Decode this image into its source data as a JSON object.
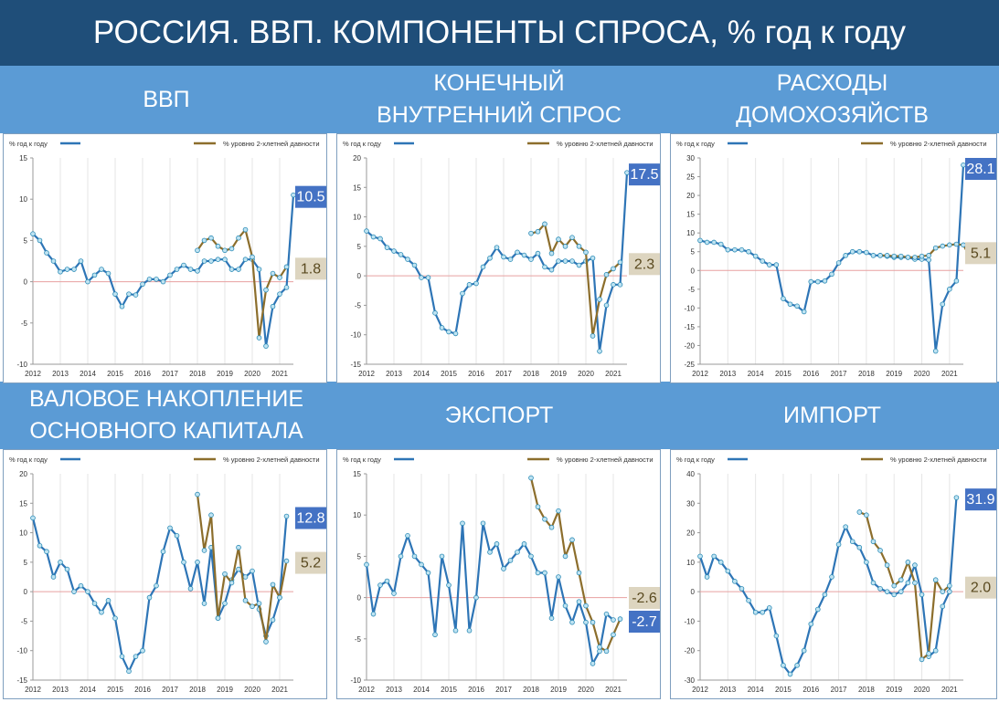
{
  "header": {
    "title": "РОССИЯ. ВВП. КОМПОНЕНТЫ СПРОСА, % год к году"
  },
  "colors": {
    "header_bg": "#1f4e79",
    "band_bg": "#5b9bd5",
    "series_yoy": "#2e75b6",
    "series_2y": "#8c6e2c",
    "label_yoy_bg": "#4472c4",
    "label_2y_bg": "#ddd5c0",
    "zero_line": "#e8a0a0"
  },
  "legend": {
    "yoy": "% год к году",
    "two_year": "% уровню 2-хлетней давности"
  },
  "panels": [
    {
      "title": "ВВП"
    },
    {
      "title": "КОНЕЧНЫЙ\nВНУТРЕННИЙ СПРОС"
    },
    {
      "title": "РАСХОДЫ\nДОМОХОЗЯЙСТВ"
    },
    {
      "title": "ВАЛОВОЕ НАКОПЛЕНИЕ\nОСНОВНОГО КАПИТАЛА"
    },
    {
      "title": "ЭКСПОРТ"
    },
    {
      "title": "ИМПОРТ"
    }
  ],
  "chart_data": [
    {
      "type": "line",
      "title": "ВВП",
      "ylim": [
        -10,
        15
      ],
      "yticks": [
        -10,
        -5,
        0,
        5,
        10,
        15
      ],
      "x_start": 2012.0,
      "x_step": 0.25,
      "x_tick_labels": [
        "2012",
        "2013",
        "2014",
        "2015",
        "2016",
        "2017",
        "2018",
        "2019",
        "2020",
        "2021"
      ],
      "series": [
        {
          "name": "% год к году",
          "start_index": 0,
          "values": [
            5.8,
            5.0,
            3.5,
            2.5,
            1.2,
            1.5,
            1.5,
            2.5,
            0.0,
            0.8,
            1.5,
            1.0,
            -1.5,
            -3.0,
            -1.5,
            -1.6,
            -0.3,
            0.3,
            0.3,
            0.0,
            0.8,
            1.5,
            2.0,
            1.5,
            1.3,
            2.5,
            2.5,
            2.7,
            2.7,
            1.5,
            1.5,
            2.7,
            2.7,
            1.5,
            -7.8,
            -3.0,
            -1.5,
            -0.7,
            10.5
          ]
        },
        {
          "name": "% уровню 2-хлетней давности",
          "start_index": 24,
          "values": [
            3.8,
            5.0,
            5.3,
            4.3,
            3.8,
            4.0,
            5.3,
            6.3,
            3.0,
            -6.8,
            -1.0,
            1.0,
            0.5,
            1.8
          ]
        }
      ],
      "end_labels": {
        "yoy": "10.5",
        "two_year": "1.8"
      }
    },
    {
      "type": "line",
      "title": "КОНЕЧНЫЙ ВНУТРЕННИЙ СПРОС",
      "ylim": [
        -15,
        20
      ],
      "yticks": [
        -15,
        -10,
        -5,
        0,
        5,
        10,
        15,
        20
      ],
      "x_start": 2012.0,
      "x_step": 0.25,
      "x_tick_labels": [
        "2012",
        "2013",
        "2014",
        "2015",
        "2016",
        "2017",
        "2018",
        "2019",
        "2020",
        "2021"
      ],
      "series": [
        {
          "name": "% год к году",
          "start_index": 0,
          "values": [
            7.6,
            6.6,
            6.3,
            4.8,
            4.2,
            3.6,
            2.8,
            1.8,
            -0.3,
            -0.3,
            -6.3,
            -8.8,
            -9.5,
            -9.8,
            -3.0,
            -1.5,
            -1.3,
            1.5,
            3.0,
            4.8,
            3.2,
            2.8,
            4.0,
            3.5,
            2.8,
            3.8,
            1.5,
            1.0,
            2.5,
            2.5,
            2.5,
            1.8,
            2.5,
            3.0,
            -12.8,
            -5.0,
            -1.5,
            -1.5,
            17.5
          ]
        },
        {
          "name": "% уровню 2-хлетней давности",
          "start_index": 24,
          "values": [
            7.2,
            7.5,
            8.8,
            3.8,
            6.2,
            5.0,
            6.5,
            5.0,
            4.0,
            -10.2,
            -4.0,
            0.2,
            1.2,
            2.3
          ]
        }
      ],
      "end_labels": {
        "yoy": "17.5",
        "two_year": "2.3"
      }
    },
    {
      "type": "line",
      "title": "РАСХОДЫ ДОМОХОЗЯЙСТВ",
      "ylim": [
        -25,
        30
      ],
      "yticks": [
        -25,
        -20,
        -15,
        -10,
        -5,
        0,
        5,
        10,
        15,
        20,
        25,
        30
      ],
      "x_start": 2012.0,
      "x_step": 0.25,
      "x_tick_labels": [
        "2012",
        "2013",
        "2014",
        "2015",
        "2016",
        "2017",
        "2018",
        "2019",
        "2020",
        "2021"
      ],
      "series": [
        {
          "name": "% год к году",
          "start_index": 0,
          "values": [
            8.0,
            7.5,
            7.5,
            7.0,
            5.5,
            5.5,
            5.5,
            5.0,
            3.8,
            2.5,
            1.5,
            1.5,
            -7.5,
            -9.0,
            -9.5,
            -11.0,
            -3.0,
            -3.0,
            -2.8,
            -1.0,
            2.0,
            4.0,
            5.0,
            5.0,
            4.8,
            4.0,
            4.0,
            3.8,
            3.5,
            3.5,
            3.5,
            3.0,
            3.0,
            2.8,
            -21.5,
            -9.0,
            -5.0,
            -2.8,
            28.1
          ]
        },
        {
          "name": "% уровню 2-хлетней давности",
          "start_index": 26,
          "values": [
            4.0,
            4.0,
            3.8,
            3.8,
            3.5,
            3.5,
            3.8,
            4.0,
            6.0,
            6.5,
            6.8,
            7.0,
            6.8,
            3.5,
            5.1
          ]
        }
      ],
      "end_labels": {
        "yoy": "28.1",
        "two_year": "5.1"
      }
    },
    {
      "type": "line",
      "title": "ВАЛОВОЕ НАКОПЛЕНИЕ ОСНОВНОГО КАПИТАЛА",
      "ylim": [
        -15,
        20
      ],
      "yticks": [
        -15,
        -10,
        -5,
        0,
        5,
        10,
        15,
        20
      ],
      "x_start": 2012.0,
      "x_step": 0.25,
      "x_tick_labels": [
        "2012",
        "2013",
        "2014",
        "2015",
        "2016",
        "2017",
        "2018",
        "2019",
        "2020",
        "2021"
      ],
      "series": [
        {
          "name": "% год к году",
          "start_index": 0,
          "values": [
            12.5,
            7.8,
            6.8,
            2.5,
            5.0,
            3.8,
            0.0,
            1.0,
            0.0,
            -2.0,
            -3.5,
            -1.5,
            -4.5,
            -11.0,
            -13.5,
            -11.0,
            -10.0,
            -1.0,
            1.0,
            6.8,
            10.8,
            9.5,
            5.0,
            0.5,
            5.0,
            -2.0,
            7.5,
            -4.5,
            -2.0,
            2.0,
            3.8,
            2.5,
            3.5,
            -3.0,
            -7.5,
            -4.8,
            -1.0,
            12.8
          ]
        },
        {
          "name": "% уровню 2-хлетней давности",
          "start_index": 24,
          "values": [
            16.5,
            7.0,
            13.0,
            -4.5,
            3.0,
            1.5,
            7.5,
            -1.5,
            -2.5,
            -2.0,
            -8.5,
            1.2,
            -1.0,
            5.2
          ]
        }
      ],
      "end_labels": {
        "yoy": "12.8",
        "two_year": "5.2"
      }
    },
    {
      "type": "line",
      "title": "ЭКСПОРТ",
      "ylim": [
        -10,
        15
      ],
      "yticks": [
        -10,
        -5,
        0,
        5,
        10,
        15
      ],
      "x_start": 2012.0,
      "x_step": 0.25,
      "x_tick_labels": [
        "2012",
        "2013",
        "2014",
        "2015",
        "2016",
        "2017",
        "2018",
        "2019",
        "2020",
        "2021"
      ],
      "series": [
        {
          "name": "% год к году",
          "start_index": 0,
          "values": [
            4.0,
            -2.0,
            1.5,
            2.0,
            0.5,
            5.0,
            7.5,
            5.0,
            4.0,
            3.0,
            -4.5,
            5.0,
            1.5,
            -4.0,
            9.0,
            -4.0,
            0.0,
            9.0,
            5.5,
            6.5,
            3.5,
            4.5,
            5.5,
            6.5,
            5.0,
            3.0,
            3.0,
            -2.5,
            2.5,
            -1.0,
            -3.0,
            -0.5,
            -3.0,
            -8.0,
            -6.5,
            -2.0,
            -2.7
          ]
        },
        {
          "name": "% уровню 2-хлетней давности",
          "start_index": 24,
          "values": [
            14.5,
            11.0,
            9.5,
            8.5,
            10.5,
            5.0,
            7.0,
            3.0,
            -1.0,
            -3.0,
            -6.0,
            -6.5,
            -4.5,
            -2.6
          ]
        }
      ],
      "end_labels": {
        "yoy": "-2.7",
        "two_year": "-2.6"
      }
    },
    {
      "type": "line",
      "title": "ИМПОРТ",
      "ylim": [
        -30,
        40
      ],
      "yticks": [
        -30,
        -20,
        -10,
        0,
        10,
        20,
        30,
        40
      ],
      "x_start": 2012.0,
      "x_step": 0.25,
      "x_tick_labels": [
        "2012",
        "2013",
        "2014",
        "2015",
        "2016",
        "2017",
        "2018",
        "2019",
        "2020",
        "2021"
      ],
      "series": [
        {
          "name": "% год к году",
          "start_index": 0,
          "values": [
            12.0,
            5.0,
            12.0,
            10.0,
            7.0,
            3.5,
            1.0,
            -3.0,
            -7.0,
            -7.0,
            -5.5,
            -15.0,
            -25.0,
            -28.0,
            -25.0,
            -20.0,
            -11.0,
            -6.0,
            -1.0,
            5.0,
            16.0,
            22.0,
            17.0,
            15.0,
            10.0,
            3.0,
            1.0,
            0.0,
            -1.0,
            0.0,
            3.0,
            9.0,
            -1.0,
            -22.0,
            -20.0,
            -5.0,
            0.0,
            31.9
          ]
        },
        {
          "name": "% уровню 2-хлетней давности",
          "start_index": 23,
          "values": [
            27.0,
            26.0,
            17.0,
            14.0,
            9.0,
            2.0,
            4.0,
            10.0,
            3.0,
            -23.0,
            -21.0,
            4.0,
            0.0,
            2.0
          ]
        }
      ],
      "end_labels": {
        "yoy": "31.9",
        "two_year": "2.0"
      }
    }
  ]
}
